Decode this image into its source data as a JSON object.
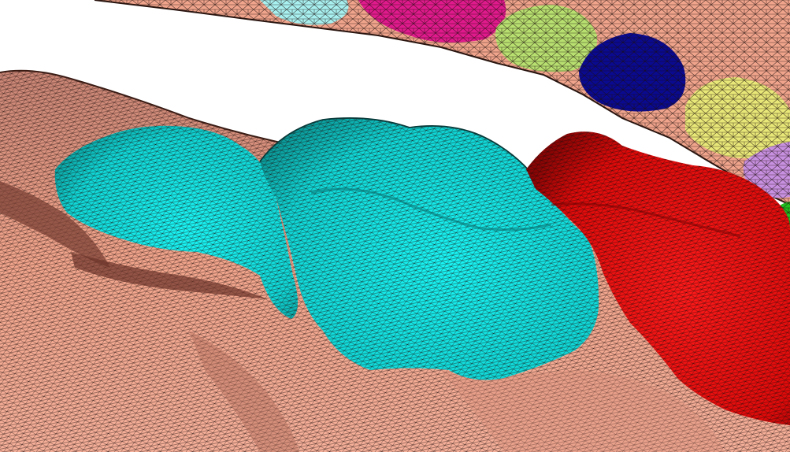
{
  "scene": {
    "subject": "dental-mesh",
    "colors": {
      "background": "#ffffff",
      "gum": "#f2a58c",
      "gum_shadow": "#9a5a4a",
      "gum_dark": "#5a2e26",
      "wire": "#1a0d0a",
      "molar_cyan": "#14f0f0",
      "molar_cyan_shadow": "#0a9a9a",
      "molar_red": "#f20d0d",
      "molar_red_shadow": "#9a0808",
      "tooth_magenta": "#e01a8c",
      "tooth_lightcyan": "#a8f0f0",
      "tooth_lime": "#b8e070",
      "tooth_navy": "#0a0a90",
      "tooth_khaki": "#e8e878",
      "tooth_lavender": "#c890e0",
      "tooth_green": "#20c020"
    }
  }
}
